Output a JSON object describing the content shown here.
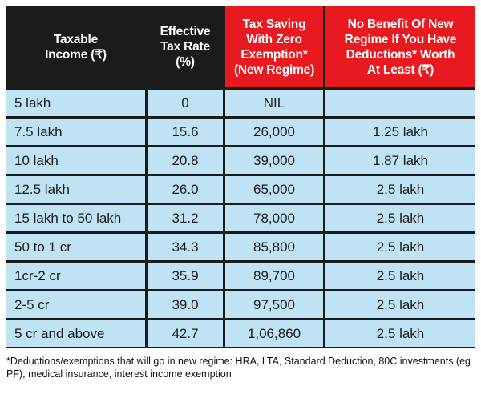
{
  "table": {
    "headers": [
      "Taxable\nIncome (₹)",
      "Effective\nTax Rate\n(%)",
      "Tax Saving\nWith Zero\nExemption*\n(New Regime)",
      "No Benefit Of New\nRegime If You Have\nDeductions* Worth\nAt Least (₹)"
    ],
    "header_colors": [
      "#1b1b1b",
      "#1b1b1b",
      "#e8191f",
      "#e8191f"
    ],
    "rows": [
      [
        "5 lakh",
        "0",
        "NIL",
        ""
      ],
      [
        "7.5 lakh",
        "15.6",
        "26,000",
        "1.25 lakh"
      ],
      [
        "10 lakh",
        "20.8",
        "39,000",
        "1.87 lakh"
      ],
      [
        "12.5 lakh",
        "26.0",
        "65,000",
        "2.5 lakh"
      ],
      [
        "15 lakh to 50 lakh",
        "31.2",
        "78,000",
        "2.5 lakh"
      ],
      [
        "50 to 1 cr",
        "34.3",
        "85,800",
        "2.5 lakh"
      ],
      [
        "1cr-2 cr",
        "35.9",
        "89,700",
        "2.5 lakh"
      ],
      [
        "2-5 cr",
        "39.0",
        "97,500",
        "2.5 lakh"
      ],
      [
        "5 cr and above",
        "42.7",
        "1,06,860",
        "2.5 lakh"
      ]
    ]
  },
  "footnote": "*Deductions/exemptions that will go in new regime: HRA, LTA, Standard Deduction, 80C investments (eg PF), medical insurance, interest income exemption",
  "colors": {
    "header_dark": "#1b1b1b",
    "header_red": "#e8191f",
    "row_light_blue": "#bfe3f5",
    "border": "#1b1b1b"
  }
}
